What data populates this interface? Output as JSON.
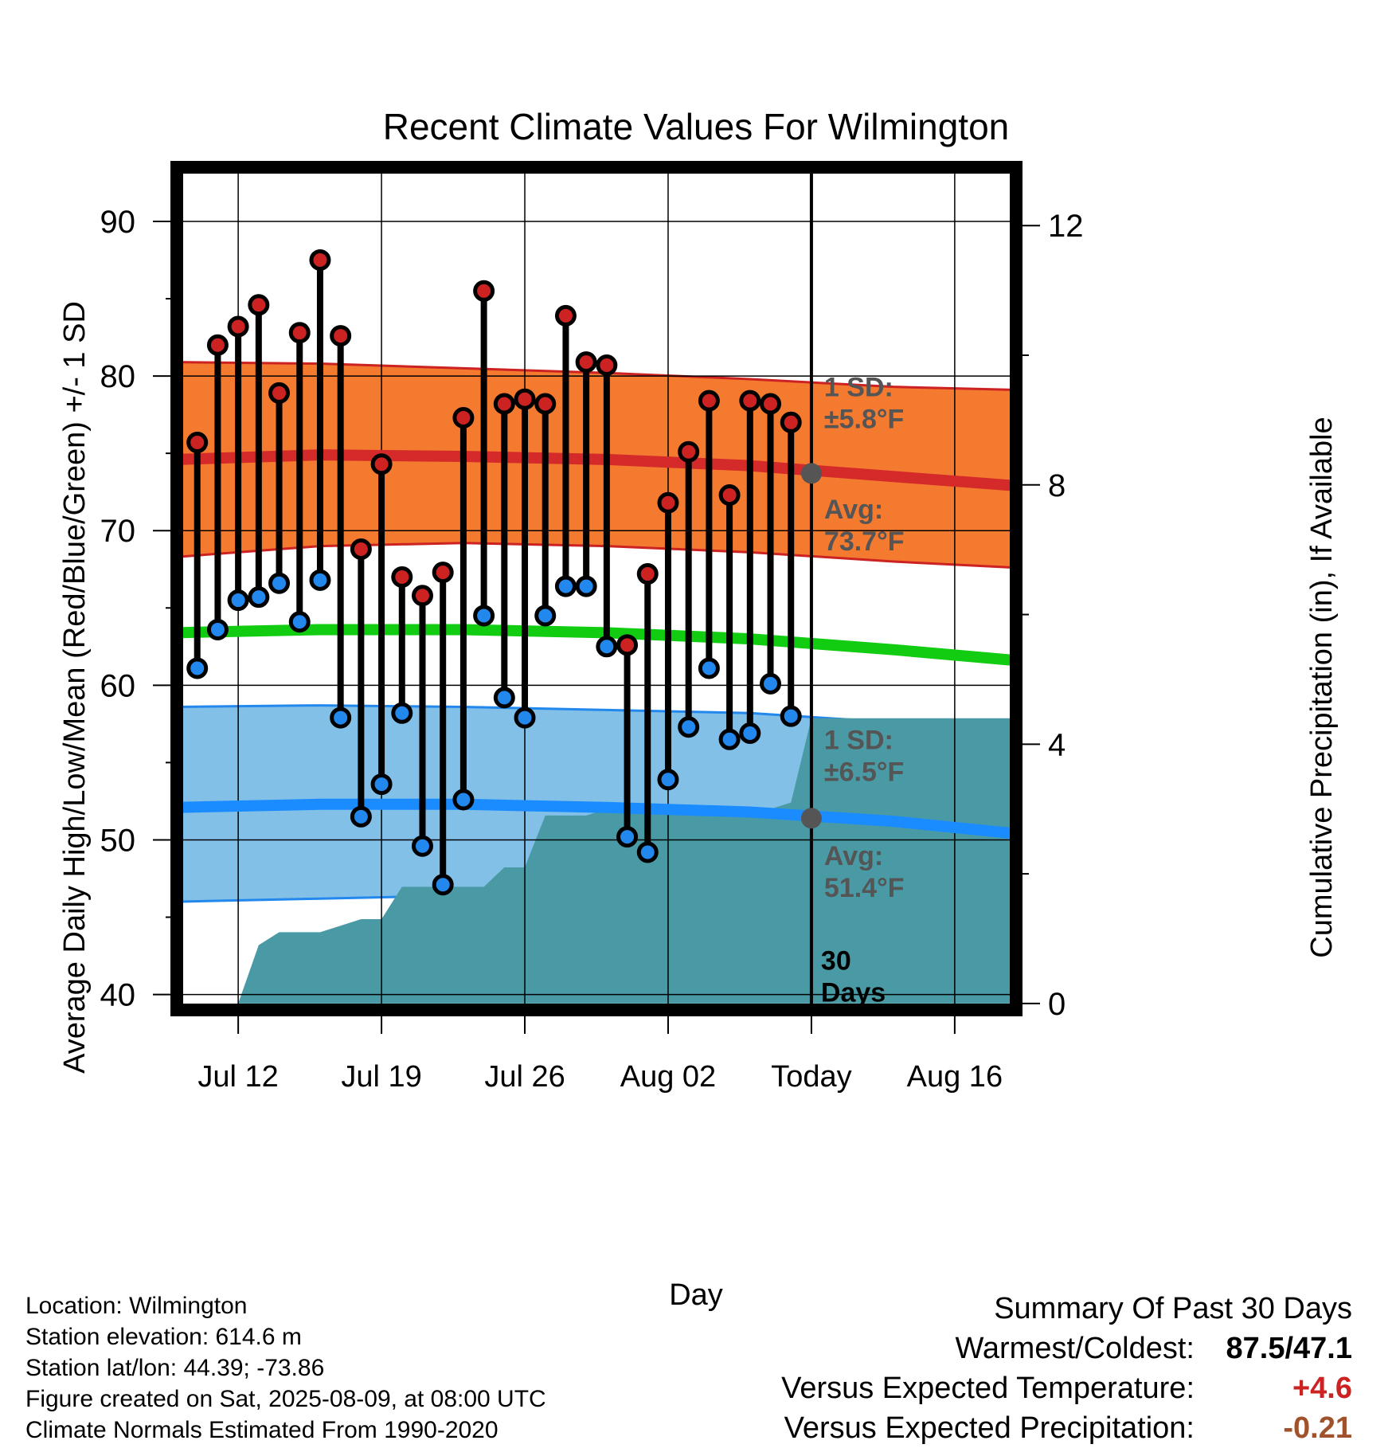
{
  "chart_data": {
    "type": "line",
    "title": "Recent Climate Values For Wilmington",
    "xlabel": "Day",
    "ylabel": "Average Daily High/Low/Mean (Red/Blue/Green) +/- 1 SD",
    "y2label": "Cumulative Precipitation (in), If Available",
    "ylim": [
      39,
      93.5
    ],
    "y2lim": [
      -0.1,
      12.9
    ],
    "xlim": [
      "2025-07-09",
      "2025-08-19"
    ],
    "grid": true,
    "x_ticks": [
      {
        "date": "2025-07-12",
        "label": "Jul 12"
      },
      {
        "date": "2025-07-19",
        "label": "Jul 19"
      },
      {
        "date": "2025-07-26",
        "label": "Jul 26"
      },
      {
        "date": "2025-08-02",
        "label": "Aug 02"
      },
      {
        "date": "2025-08-09",
        "label": "Today"
      },
      {
        "date": "2025-08-16",
        "label": "Aug 16"
      }
    ],
    "y_ticks": [
      40,
      50,
      60,
      70,
      80,
      90
    ],
    "y2_ticks": [
      0,
      4,
      8,
      12
    ],
    "today": "2025-08-09",
    "days_label": [
      "30",
      "Days"
    ],
    "normals": {
      "dates": [
        "2025-07-09",
        "2025-07-16",
        "2025-07-23",
        "2025-07-30",
        "2025-08-06",
        "2025-08-13",
        "2025-08-19"
      ],
      "high_mean": [
        74.6,
        74.9,
        74.8,
        74.6,
        74.2,
        73.5,
        72.9
      ],
      "high_upper": [
        80.9,
        80.8,
        80.5,
        80.2,
        79.8,
        79.3,
        79.1
      ],
      "high_lower": [
        68.3,
        69.0,
        69.2,
        69.0,
        68.6,
        68.0,
        67.6
      ],
      "mean": [
        63.4,
        63.6,
        63.6,
        63.4,
        63.0,
        62.3,
        61.6
      ],
      "low_mean": [
        52.1,
        52.3,
        52.3,
        52.1,
        51.8,
        51.2,
        50.4
      ],
      "low_upper": [
        58.6,
        58.7,
        58.6,
        58.4,
        58.2,
        57.6,
        57.0
      ],
      "low_lower": [
        46.0,
        46.2,
        46.4,
        46.2,
        45.8,
        45.5,
        45.4
      ]
    },
    "high_sd_text": [
      "1 SD:",
      "±5.8°F"
    ],
    "high_avg_text": [
      "Avg:",
      "73.7°F"
    ],
    "low_sd_text": [
      "1 SD:",
      "±6.5°F"
    ],
    "low_avg_text": [
      "Avg:",
      "51.4°F"
    ],
    "high_avg_value": 73.7,
    "low_avg_value": 51.4,
    "series": [
      {
        "name": "High",
        "color": "#cc2222",
        "dates": [
          "2025-07-10",
          "2025-07-11",
          "2025-07-12",
          "2025-07-13",
          "2025-07-14",
          "2025-07-15",
          "2025-07-16",
          "2025-07-17",
          "2025-07-18",
          "2025-07-19",
          "2025-07-20",
          "2025-07-21",
          "2025-07-22",
          "2025-07-23",
          "2025-07-24",
          "2025-07-25",
          "2025-07-26",
          "2025-07-27",
          "2025-07-28",
          "2025-07-29",
          "2025-07-30",
          "2025-07-31",
          "2025-08-01",
          "2025-08-02",
          "2025-08-03",
          "2025-08-04",
          "2025-08-05",
          "2025-08-06",
          "2025-08-07",
          "2025-08-08"
        ],
        "values": [
          75.7,
          82.0,
          83.2,
          84.6,
          78.9,
          82.8,
          87.5,
          82.6,
          68.8,
          74.3,
          67.0,
          65.8,
          67.3,
          77.3,
          85.5,
          78.2,
          78.5,
          78.2,
          83.9,
          80.9,
          80.7,
          62.6,
          67.2,
          71.8,
          75.1,
          78.4,
          72.3,
          78.4,
          78.2,
          77.0
        ]
      },
      {
        "name": "Low",
        "color": "#2288ee",
        "dates": [
          "2025-07-10",
          "2025-07-11",
          "2025-07-12",
          "2025-07-13",
          "2025-07-14",
          "2025-07-15",
          "2025-07-16",
          "2025-07-17",
          "2025-07-18",
          "2025-07-19",
          "2025-07-20",
          "2025-07-21",
          "2025-07-22",
          "2025-07-23",
          "2025-07-24",
          "2025-07-25",
          "2025-07-26",
          "2025-07-27",
          "2025-07-28",
          "2025-07-29",
          "2025-07-30",
          "2025-07-31",
          "2025-08-01",
          "2025-08-02",
          "2025-08-03",
          "2025-08-04",
          "2025-08-05",
          "2025-08-06",
          "2025-08-07",
          "2025-08-08"
        ],
        "values": [
          61.1,
          63.6,
          65.5,
          65.7,
          66.6,
          64.1,
          66.8,
          57.9,
          51.5,
          53.6,
          58.2,
          49.6,
          47.1,
          52.6,
          64.5,
          59.2,
          57.9,
          64.5,
          66.4,
          66.4,
          62.5,
          50.2,
          49.2,
          53.9,
          57.3,
          61.1,
          56.5,
          56.9,
          60.1,
          58.0
        ]
      }
    ],
    "precipitation": {
      "name": "Cumulative Precipitation",
      "color": "#4a9aa5",
      "dates": [
        "2025-07-12",
        "2025-07-13",
        "2025-07-14",
        "2025-07-15",
        "2025-07-16",
        "2025-07-17",
        "2025-07-18",
        "2025-07-19",
        "2025-07-20",
        "2025-07-21",
        "2025-07-22",
        "2025-07-23",
        "2025-07-24",
        "2025-07-25",
        "2025-07-26",
        "2025-07-27",
        "2025-07-28",
        "2025-07-29",
        "2025-07-30",
        "2025-07-31",
        "2025-08-01",
        "2025-08-02",
        "2025-08-03",
        "2025-08-04",
        "2025-08-05",
        "2025-08-06",
        "2025-08-07",
        "2025-08-08",
        "2025-08-09",
        "2025-08-19"
      ],
      "values": [
        0.0,
        0.9,
        1.1,
        1.1,
        1.1,
        1.2,
        1.3,
        1.3,
        1.8,
        1.8,
        1.8,
        1.8,
        1.8,
        2.1,
        2.1,
        2.9,
        2.9,
        2.9,
        3.0,
        3.0,
        3.0,
        3.0,
        3.0,
        3.0,
        3.0,
        3.0,
        3.0,
        3.1,
        4.4,
        4.4
      ]
    }
  },
  "info": {
    "location": "Location: Wilmington",
    "elevation": "Station elevation: 614.6 m",
    "latlon": "Station lat/lon: 44.39; -73.86",
    "created": "Figure created on Sat, 2025-08-09, at 08:00 UTC",
    "normals": "Climate Normals Estimated From 1990-2020"
  },
  "summary": {
    "heading": "Summary Of Past 30 Days",
    "warmest_label": "Warmest/Coldest:",
    "warmest_value": "87.5/47.1",
    "temp_label": "Versus Expected Temperature:",
    "temp_value": "+4.6",
    "temp_color": "#cc2222",
    "precip_label": "Versus Expected Precipitation:",
    "precip_value": "-0.21",
    "precip_color": "#a0522d"
  }
}
